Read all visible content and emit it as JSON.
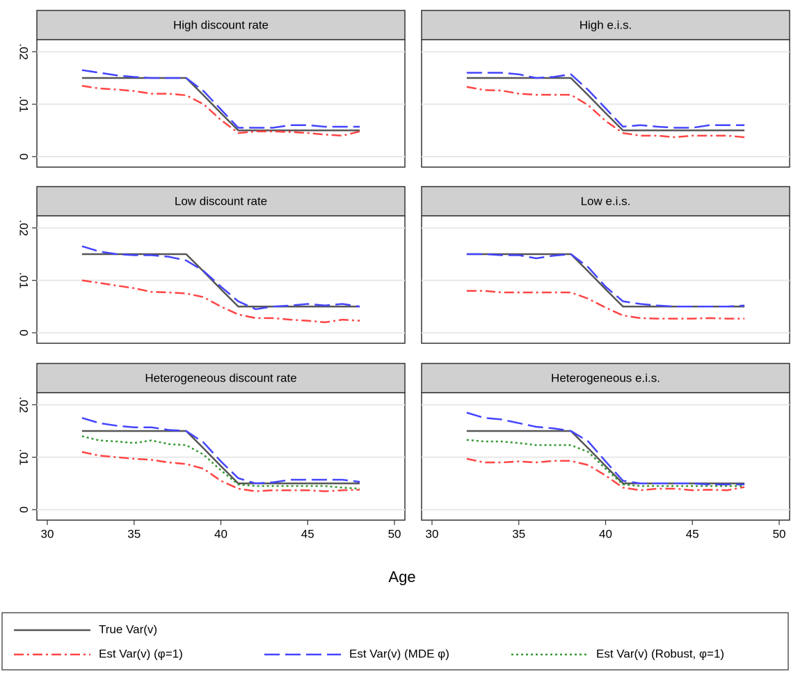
{
  "x_label": "Age",
  "chart_data": [
    {
      "type": "line",
      "title": "High discount rate",
      "x": [
        32,
        33,
        34,
        35,
        36,
        37,
        38,
        39,
        40,
        41,
        42,
        43,
        44,
        45,
        46,
        47,
        48
      ],
      "xlim": [
        29.4,
        50.6
      ],
      "ylim": [
        -0.002,
        0.0223
      ],
      "yticks": [
        0,
        {
          "value": 0.01,
          "label": ".01"
        },
        {
          "value": 0.02,
          "label": ".02"
        }
      ],
      "grid": true,
      "series": [
        {
          "name": "True Var(v)",
          "color": "#555555",
          "dash": "solid",
          "values": [
            0.015,
            0.015,
            0.015,
            0.015,
            0.015,
            0.015,
            0.015,
            0.0117,
            0.0083,
            0.005,
            0.005,
            0.005,
            0.005,
            0.005,
            0.005,
            0.005,
            0.005
          ]
        },
        {
          "name": "Est Var(v) (φ=1)",
          "color": "#ff4444",
          "dash": "dashdot",
          "values": [
            0.0135,
            0.013,
            0.0128,
            0.0125,
            0.012,
            0.012,
            0.0117,
            0.01,
            0.007,
            0.0045,
            0.0048,
            0.0048,
            0.0047,
            0.0045,
            0.0042,
            0.004,
            0.0048
          ]
        },
        {
          "name": "Est Var(v) (MDE φ)",
          "color": "#4444ff",
          "dash": "longdash",
          "values": [
            0.0165,
            0.016,
            0.0155,
            0.0152,
            0.015,
            0.015,
            0.015,
            0.0125,
            0.009,
            0.0055,
            0.0055,
            0.0055,
            0.006,
            0.006,
            0.0057,
            0.0057,
            0.0057
          ]
        }
      ]
    },
    {
      "type": "line",
      "title": "High e.i.s.",
      "x": [
        32,
        33,
        34,
        35,
        36,
        37,
        38,
        39,
        40,
        41,
        42,
        43,
        44,
        45,
        46,
        47,
        48
      ],
      "xlim": [
        29.4,
        50.6
      ],
      "ylim": [
        -0.002,
        0.0223
      ],
      "yticks": [
        0,
        {
          "value": 0.01,
          "label": ".01"
        },
        {
          "value": 0.02,
          "label": ".02"
        }
      ],
      "grid": true,
      "series": [
        {
          "name": "True Var(v)",
          "color": "#555555",
          "dash": "solid",
          "values": [
            0.015,
            0.015,
            0.015,
            0.015,
            0.015,
            0.015,
            0.015,
            0.0117,
            0.0083,
            0.005,
            0.005,
            0.005,
            0.005,
            0.005,
            0.005,
            0.005,
            0.005
          ]
        },
        {
          "name": "Est Var(v) (φ=1)",
          "color": "#ff4444",
          "dash": "dashdot",
          "values": [
            0.0133,
            0.0127,
            0.0126,
            0.012,
            0.0118,
            0.0118,
            0.0118,
            0.0098,
            0.0068,
            0.0045,
            0.004,
            0.004,
            0.0037,
            0.004,
            0.004,
            0.004,
            0.0037
          ]
        },
        {
          "name": "Est Var(v) (MDE φ)",
          "color": "#4444ff",
          "dash": "longdash",
          "values": [
            0.016,
            0.016,
            0.016,
            0.0157,
            0.015,
            0.0152,
            0.0157,
            0.0127,
            0.0092,
            0.0057,
            0.006,
            0.0057,
            0.0055,
            0.0055,
            0.006,
            0.006,
            0.006
          ]
        }
      ]
    },
    {
      "type": "line",
      "title": "Low discount rate",
      "x": [
        32,
        33,
        34,
        35,
        36,
        37,
        38,
        39,
        40,
        41,
        42,
        43,
        44,
        45,
        46,
        47,
        48
      ],
      "xlim": [
        29.4,
        50.6
      ],
      "ylim": [
        -0.002,
        0.0223
      ],
      "yticks": [
        0,
        {
          "value": 0.01,
          "label": ".01"
        },
        {
          "value": 0.02,
          "label": ".02"
        }
      ],
      "grid": true,
      "series": [
        {
          "name": "True Var(v)",
          "color": "#555555",
          "dash": "solid",
          "values": [
            0.015,
            0.015,
            0.015,
            0.015,
            0.015,
            0.015,
            0.015,
            0.0117,
            0.0083,
            0.005,
            0.005,
            0.005,
            0.005,
            0.005,
            0.005,
            0.005,
            0.005
          ]
        },
        {
          "name": "Est Var(v) (φ=1)",
          "color": "#ff4444",
          "dash": "dashdot",
          "values": [
            0.01,
            0.0095,
            0.009,
            0.0085,
            0.0078,
            0.0077,
            0.0075,
            0.0068,
            0.005,
            0.0035,
            0.0028,
            0.0028,
            0.0025,
            0.0023,
            0.002,
            0.0025,
            0.0023
          ]
        },
        {
          "name": "Est Var(v) (MDE φ)",
          "color": "#4444ff",
          "dash": "longdash",
          "values": [
            0.0165,
            0.0155,
            0.015,
            0.0148,
            0.0148,
            0.0145,
            0.0138,
            0.0118,
            0.0088,
            0.006,
            0.0045,
            0.005,
            0.0052,
            0.0055,
            0.0052,
            0.0055,
            0.005
          ]
        }
      ]
    },
    {
      "type": "line",
      "title": "Low e.i.s.",
      "x": [
        32,
        33,
        34,
        35,
        36,
        37,
        38,
        39,
        40,
        41,
        42,
        43,
        44,
        45,
        46,
        47,
        48
      ],
      "xlim": [
        29.4,
        50.6
      ],
      "ylim": [
        -0.002,
        0.0223
      ],
      "yticks": [
        0,
        {
          "value": 0.01,
          "label": ".01"
        },
        {
          "value": 0.02,
          "label": ".02"
        }
      ],
      "grid": true,
      "series": [
        {
          "name": "True Var(v)",
          "color": "#555555",
          "dash": "solid",
          "values": [
            0.015,
            0.015,
            0.015,
            0.015,
            0.015,
            0.015,
            0.015,
            0.0117,
            0.0083,
            0.005,
            0.005,
            0.005,
            0.005,
            0.005,
            0.005,
            0.005,
            0.005
          ]
        },
        {
          "name": "Est Var(v) (φ=1)",
          "color": "#ff4444",
          "dash": "dashdot",
          "values": [
            0.008,
            0.008,
            0.0077,
            0.0077,
            0.0077,
            0.0077,
            0.0077,
            0.0065,
            0.0048,
            0.0033,
            0.0028,
            0.0027,
            0.0027,
            0.0027,
            0.0028,
            0.0027,
            0.0027
          ]
        },
        {
          "name": "Est Var(v) (MDE φ)",
          "color": "#4444ff",
          "dash": "longdash",
          "values": [
            0.015,
            0.015,
            0.0148,
            0.0148,
            0.0142,
            0.0147,
            0.015,
            0.0125,
            0.0088,
            0.006,
            0.0055,
            0.0052,
            0.005,
            0.005,
            0.005,
            0.005,
            0.0052
          ]
        }
      ]
    },
    {
      "type": "line",
      "title": "Heterogeneous discount rate",
      "x": [
        32,
        33,
        34,
        35,
        36,
        37,
        38,
        39,
        40,
        41,
        42,
        43,
        44,
        45,
        46,
        47,
        48
      ],
      "xlim": [
        29.4,
        50.6
      ],
      "ylim": [
        -0.002,
        0.0223
      ],
      "xticks": [
        30,
        35,
        40,
        45,
        50
      ],
      "yticks": [
        0,
        {
          "value": 0.01,
          "label": ".01"
        },
        {
          "value": 0.02,
          "label": ".02"
        }
      ],
      "grid": true,
      "series": [
        {
          "name": "True Var(v)",
          "color": "#555555",
          "dash": "solid",
          "values": [
            0.015,
            0.015,
            0.015,
            0.015,
            0.015,
            0.015,
            0.015,
            0.0117,
            0.0083,
            0.005,
            0.005,
            0.005,
            0.005,
            0.005,
            0.005,
            0.005,
            0.005
          ]
        },
        {
          "name": "Est Var(v) (φ=1)",
          "color": "#ff4444",
          "dash": "dashdot",
          "values": [
            0.011,
            0.0103,
            0.01,
            0.0097,
            0.0095,
            0.009,
            0.0087,
            0.0078,
            0.0055,
            0.004,
            0.0035,
            0.0037,
            0.0037,
            0.0037,
            0.0035,
            0.0037,
            0.0038
          ]
        },
        {
          "name": "Est Var(v) (MDE φ)",
          "color": "#4444ff",
          "dash": "longdash",
          "values": [
            0.0175,
            0.0165,
            0.016,
            0.0157,
            0.0157,
            0.0152,
            0.015,
            0.0128,
            0.0092,
            0.006,
            0.005,
            0.0052,
            0.0057,
            0.0057,
            0.0057,
            0.0057,
            0.0053
          ]
        },
        {
          "name": "Est Var(v) (Robust, φ=1)",
          "color": "#339933",
          "dash": "dot",
          "values": [
            0.014,
            0.0132,
            0.013,
            0.0127,
            0.0132,
            0.0125,
            0.0123,
            0.0105,
            0.0075,
            0.0048,
            0.0045,
            0.0045,
            0.0045,
            0.0045,
            0.0045,
            0.0042,
            0.004
          ]
        }
      ]
    },
    {
      "type": "line",
      "title": "Heterogeneous e.i.s.",
      "x": [
        32,
        33,
        34,
        35,
        36,
        37,
        38,
        39,
        40,
        41,
        42,
        43,
        44,
        45,
        46,
        47,
        48
      ],
      "xlim": [
        29.4,
        50.6
      ],
      "ylim": [
        -0.002,
        0.0223
      ],
      "xticks": [
        30,
        35,
        40,
        45,
        50
      ],
      "yticks": [
        0,
        {
          "value": 0.01,
          "label": ".01"
        },
        {
          "value": 0.02,
          "label": ".02"
        }
      ],
      "grid": true,
      "series": [
        {
          "name": "True Var(v)",
          "color": "#555555",
          "dash": "solid",
          "values": [
            0.015,
            0.015,
            0.015,
            0.015,
            0.015,
            0.015,
            0.015,
            0.0117,
            0.0083,
            0.005,
            0.005,
            0.005,
            0.005,
            0.005,
            0.005,
            0.005,
            0.005
          ]
        },
        {
          "name": "Est Var(v) (φ=1)",
          "color": "#ff4444",
          "dash": "dashdot",
          "values": [
            0.0097,
            0.009,
            0.009,
            0.0092,
            0.009,
            0.0093,
            0.0093,
            0.0085,
            0.0065,
            0.0042,
            0.0037,
            0.004,
            0.004,
            0.0037,
            0.0038,
            0.0037,
            0.0043
          ]
        },
        {
          "name": "Est Var(v) (MDE φ)",
          "color": "#4444ff",
          "dash": "longdash",
          "values": [
            0.0185,
            0.0175,
            0.0172,
            0.0165,
            0.0158,
            0.0155,
            0.015,
            0.013,
            0.0092,
            0.0055,
            0.005,
            0.005,
            0.005,
            0.005,
            0.0048,
            0.0048,
            0.0048
          ]
        },
        {
          "name": "Est Var(v) (Robust, φ=1)",
          "color": "#339933",
          "dash": "dot",
          "values": [
            0.0133,
            0.013,
            0.013,
            0.0127,
            0.0123,
            0.0123,
            0.0123,
            0.011,
            0.0078,
            0.0048,
            0.0045,
            0.0045,
            0.0045,
            0.0045,
            0.0045,
            0.0045,
            0.0045
          ]
        }
      ]
    }
  ]
}
